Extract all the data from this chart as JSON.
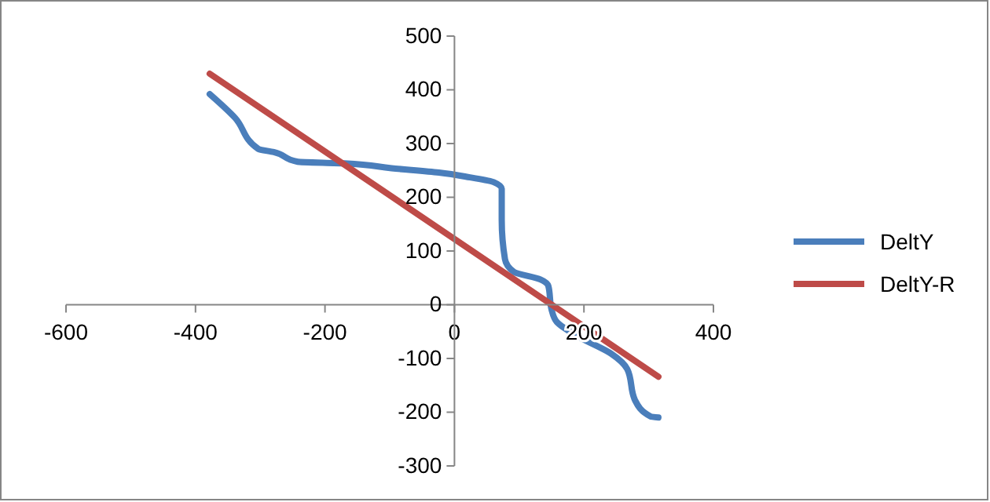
{
  "chart_data": {
    "type": "line",
    "xlim": [
      -600,
      400
    ],
    "xticks": [
      -600,
      -400,
      -200,
      0,
      200,
      400
    ],
    "ylim": [
      -300,
      500
    ],
    "yticks": [
      -300,
      -200,
      -100,
      0,
      100,
      200,
      300,
      400,
      500
    ],
    "grid": false,
    "legend": "right",
    "marker": "none",
    "series": [
      {
        "name": "DeltY",
        "color": "#4a7ebb",
        "x": [
          -378,
          -339,
          -303,
          -279,
          -242,
          -170,
          -97,
          -24,
          24,
          61,
          73,
          73,
          78,
          92,
          133,
          145,
          150,
          158,
          194,
          242,
          267,
          279,
          303,
          315
        ],
        "values": [
          392,
          348,
          290,
          284,
          266,
          263,
          254,
          246,
          237,
          228,
          216,
          158,
          85,
          61,
          47,
          35,
          -9,
          -32,
          -61,
          -91,
          -120,
          -178,
          -208,
          -210
        ]
      },
      {
        "name": "DeltY-R",
        "color": "#be4b48",
        "x": [
          -378,
          315
        ],
        "values": [
          430,
          -134
        ]
      }
    ]
  }
}
